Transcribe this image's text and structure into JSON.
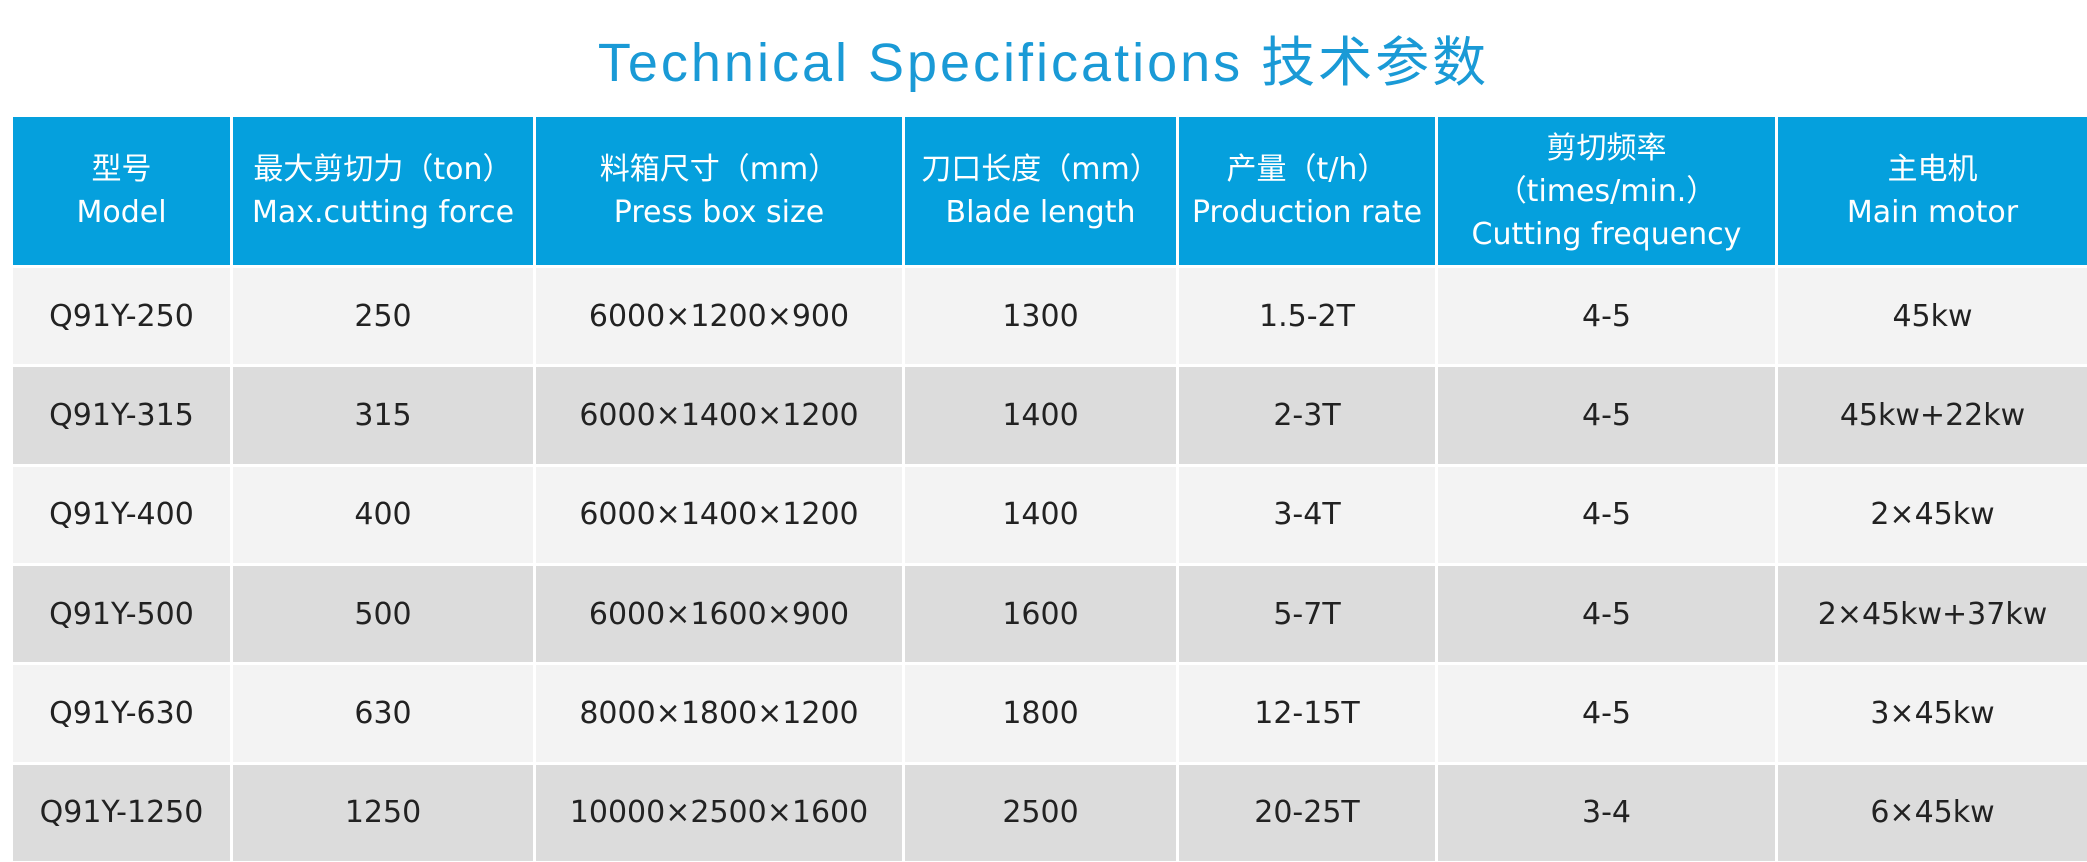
{
  "title": "Technical Specifications 技术参数",
  "table": {
    "header": [
      [
        "型号",
        "Model"
      ],
      [
        "最大剪切力（ton）",
        "Max.cutting force"
      ],
      [
        "料箱尺寸（mm）",
        "Press box size"
      ],
      [
        "刀口长度（mm）",
        "Blade length"
      ],
      [
        "产量（t/h）",
        "Production rate"
      ],
      [
        "剪切频率",
        "（times/min.）",
        "Cutting frequency"
      ],
      [
        "主电机",
        "Main motor"
      ]
    ],
    "rows": [
      [
        "Q91Y-250",
        "250",
        "6000×1200×900",
        "1300",
        "1.5-2T",
        "4-5",
        "45kw"
      ],
      [
        "Q91Y-315",
        "315",
        "6000×1400×1200",
        "1400",
        "2-3T",
        "4-5",
        "45kw+22kw"
      ],
      [
        "Q91Y-400",
        "400",
        "6000×1400×1200",
        "1400",
        "3-4T",
        "4-5",
        "2×45kw"
      ],
      [
        "Q91Y-500",
        "500",
        "6000×1600×900",
        "1600",
        "5-7T",
        "4-5",
        "2×45kw+37kw"
      ],
      [
        "Q91Y-630",
        "630",
        "8000×1800×1200",
        "1800",
        "12-15T",
        "4-5",
        "3×45kw"
      ],
      [
        "Q91Y-1250",
        "1250",
        "10000×2500×1600",
        "2500",
        "20-25T",
        "3-4",
        "6×45kw"
      ]
    ]
  }
}
